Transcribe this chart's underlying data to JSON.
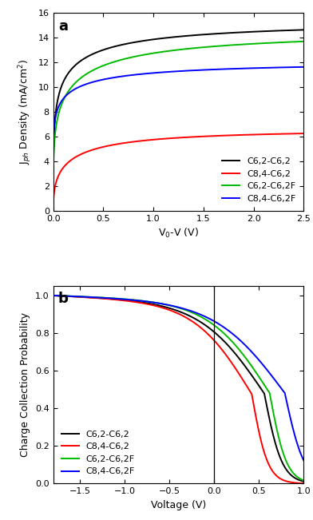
{
  "panel_a": {
    "title": "a",
    "xlabel": "V$_0$-V (V)",
    "ylabel": "J$_{ph}$ Density (mA/cm$^2$)",
    "xlim": [
      0,
      2.5
    ],
    "ylim": [
      0,
      16
    ],
    "yticks": [
      0,
      2,
      4,
      6,
      8,
      10,
      12,
      14,
      16
    ],
    "xticks": [
      0.0,
      0.5,
      1.0,
      1.5,
      2.0,
      2.5
    ],
    "series": [
      {
        "label": "C6,2-C6,2",
        "color": "black",
        "sat": 15.25,
        "v0": 0.0,
        "alpha": 0.25,
        "y0": 0.0
      },
      {
        "label": "C8,4-C6,2",
        "color": "red",
        "sat": 6.5,
        "v0": 0.0,
        "alpha": 0.38,
        "y0": 0.0
      },
      {
        "label": "C6,2-C6,2F",
        "color": "#00bb00",
        "sat": 14.4,
        "v0": 1.4,
        "alpha": 0.22,
        "y0": 1.5
      },
      {
        "label": "C8,4-C6,2F",
        "color": "blue",
        "sat": 12.0,
        "v0": 4.0,
        "alpha": 0.3,
        "y0": 4.0
      }
    ],
    "legend_loc": "lower right"
  },
  "panel_b": {
    "title": "b",
    "xlabel": "Voltage (V)",
    "ylabel": "Charge Collection Probability",
    "xlim": [
      -1.8,
      1.0
    ],
    "ylim": [
      0.0,
      1.05
    ],
    "yticks": [
      0.0,
      0.2,
      0.4,
      0.6,
      0.8,
      1.0
    ],
    "xticks": [
      -1.5,
      -1.0,
      -0.5,
      0.0,
      0.5,
      1.0
    ],
    "vline_x": 0.0,
    "series": [
      {
        "label": "C6,2-C6,2",
        "color": "black",
        "voc": 0.56,
        "sharp": 0.1,
        "slope": 0.018
      },
      {
        "label": "C8,4-C6,2",
        "color": "red",
        "voc": 0.42,
        "sharp": 0.09,
        "slope": 0.022
      },
      {
        "label": "C6,2-C6,2F",
        "color": "#00bb00",
        "voc": 0.62,
        "sharp": 0.095,
        "slope": 0.016
      },
      {
        "label": "C8,4-C6,2F",
        "color": "blue",
        "voc": 0.79,
        "sharp": 0.11,
        "slope": 0.015
      }
    ],
    "legend_loc": "lower left"
  },
  "figure_bg": "white",
  "linewidth": 1.4,
  "label_fontsize": 9,
  "tick_fontsize": 8,
  "legend_fontsize": 8,
  "panel_label_fontsize": 13
}
